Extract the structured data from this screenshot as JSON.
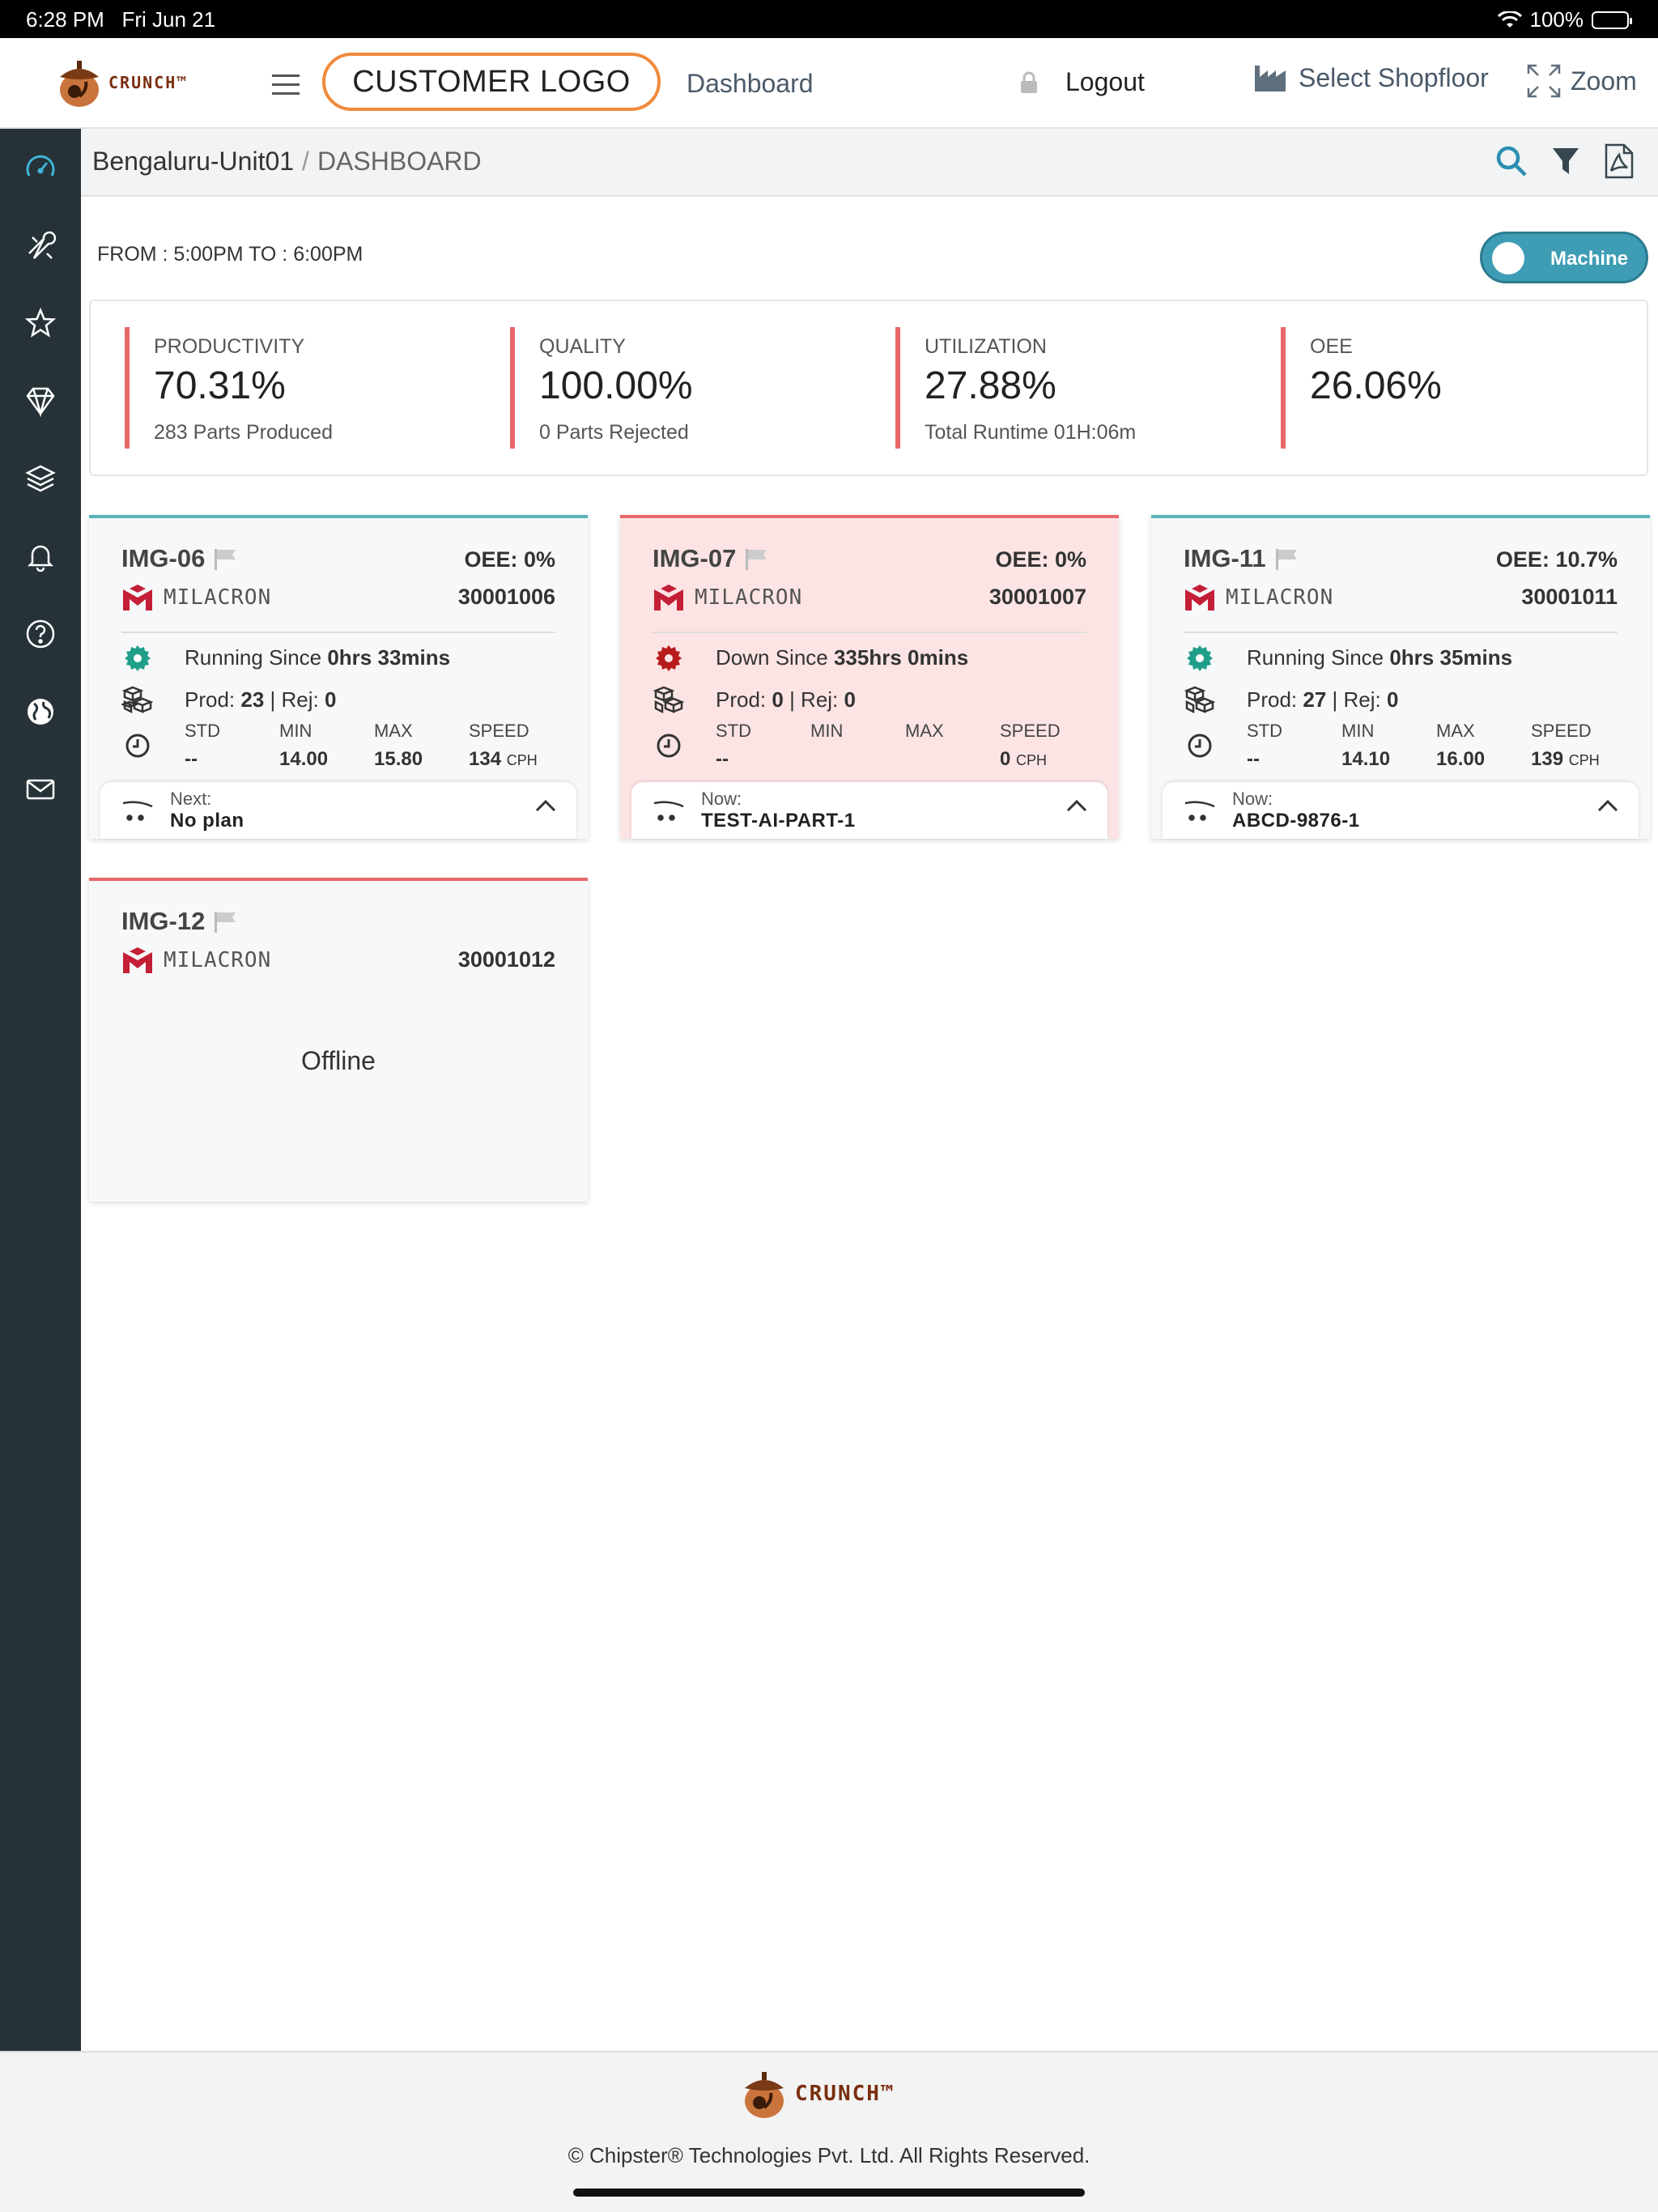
{
  "status_bar": {
    "time": "6:28 PM",
    "date": "Fri Jun 21",
    "battery": "100%"
  },
  "header": {
    "brand": "CRUNCH™",
    "customer_logo": "CUSTOMER LOGO",
    "nav": {
      "dashboard": "Dashboard",
      "logout": "Logout",
      "select_shopfloor": "Select Shopfloor",
      "zoom": "Zoom"
    }
  },
  "sidebar": {
    "items": [
      {
        "icon": "speedometer-icon",
        "active": true
      },
      {
        "icon": "tools-icon"
      },
      {
        "icon": "star-icon"
      },
      {
        "icon": "diamond-icon"
      },
      {
        "icon": "layers-icon"
      },
      {
        "icon": "bell-icon"
      },
      {
        "icon": "help-icon"
      },
      {
        "icon": "globe-icon"
      },
      {
        "icon": "mail-icon"
      }
    ]
  },
  "breadcrumb": {
    "location": "Bengaluru-Unit01",
    "separator": "/",
    "page": "DASHBOARD"
  },
  "time_range": "FROM : 5:00PM TO : 6:00PM",
  "toggle": {
    "label": "Machine"
  },
  "kpis": [
    {
      "label": "PRODUCTIVITY",
      "value": "70.31%",
      "sub": "283 Parts Produced"
    },
    {
      "label": "QUALITY",
      "value": "100.00%",
      "sub": "0 Parts Rejected"
    },
    {
      "label": "UTILIZATION",
      "value": "27.88%",
      "sub": "Total Runtime 01H:06m"
    },
    {
      "label": "OEE",
      "value": "26.06%",
      "sub": ""
    }
  ],
  "machines": [
    {
      "name": "IMG-06",
      "oee": "OEE: 0%",
      "brand": "MILACRON",
      "code": "30001006",
      "status_prefix": "Running Since ",
      "status_value": "0hrs 33mins",
      "prod_label": "Prod: ",
      "prod": "23",
      "rej_label": " | Rej: ",
      "rej": "0",
      "std_label": "STD",
      "min_label": "MIN",
      "max_label": "MAX",
      "speed_label": "SPEED",
      "std": "--",
      "min": "14.00",
      "max": "15.80",
      "speed": "134",
      "speed_unit": "CPH",
      "plan_label": "Next:",
      "plan_value": "No plan"
    },
    {
      "name": "IMG-07",
      "oee": "OEE: 0%",
      "brand": "MILACRON",
      "code": "30001007",
      "status_prefix": "Down Since ",
      "status_value": "335hrs 0mins",
      "prod_label": "Prod: ",
      "prod": "0",
      "rej_label": " | Rej: ",
      "rej": "0",
      "std_label": "STD",
      "min_label": "MIN",
      "max_label": "MAX",
      "speed_label": "SPEED",
      "std": "--",
      "min": "",
      "max": "",
      "speed": "0",
      "speed_unit": "CPH",
      "plan_label": "Now:",
      "plan_value": "TEST-AI-PART-1"
    },
    {
      "name": "IMG-11",
      "oee": "OEE: 10.7%",
      "brand": "MILACRON",
      "code": "30001011",
      "status_prefix": "Running Since ",
      "status_value": "0hrs 35mins",
      "prod_label": "Prod: ",
      "prod": "27",
      "rej_label": " | Rej: ",
      "rej": "0",
      "std_label": "STD",
      "min_label": "MIN",
      "max_label": "MAX",
      "speed_label": "SPEED",
      "std": "--",
      "min": "14.10",
      "max": "16.00",
      "speed": "139",
      "speed_unit": "CPH",
      "plan_label": "Now:",
      "plan_value": "ABCD-9876-1"
    },
    {
      "name": "IMG-12",
      "brand": "MILACRON",
      "code": "30001012",
      "offline_text": "Offline"
    }
  ],
  "colors": {
    "accent": "#3e9db5",
    "kpi_bar": "#e8686a",
    "running": "#1f9e8a",
    "down": "#b71c1c",
    "sidebar": "#263238"
  },
  "footer": {
    "brand": "CRUNCH™",
    "copyright": "© Chipster® Technologies Pvt. Ltd. All Rights Reserved."
  }
}
